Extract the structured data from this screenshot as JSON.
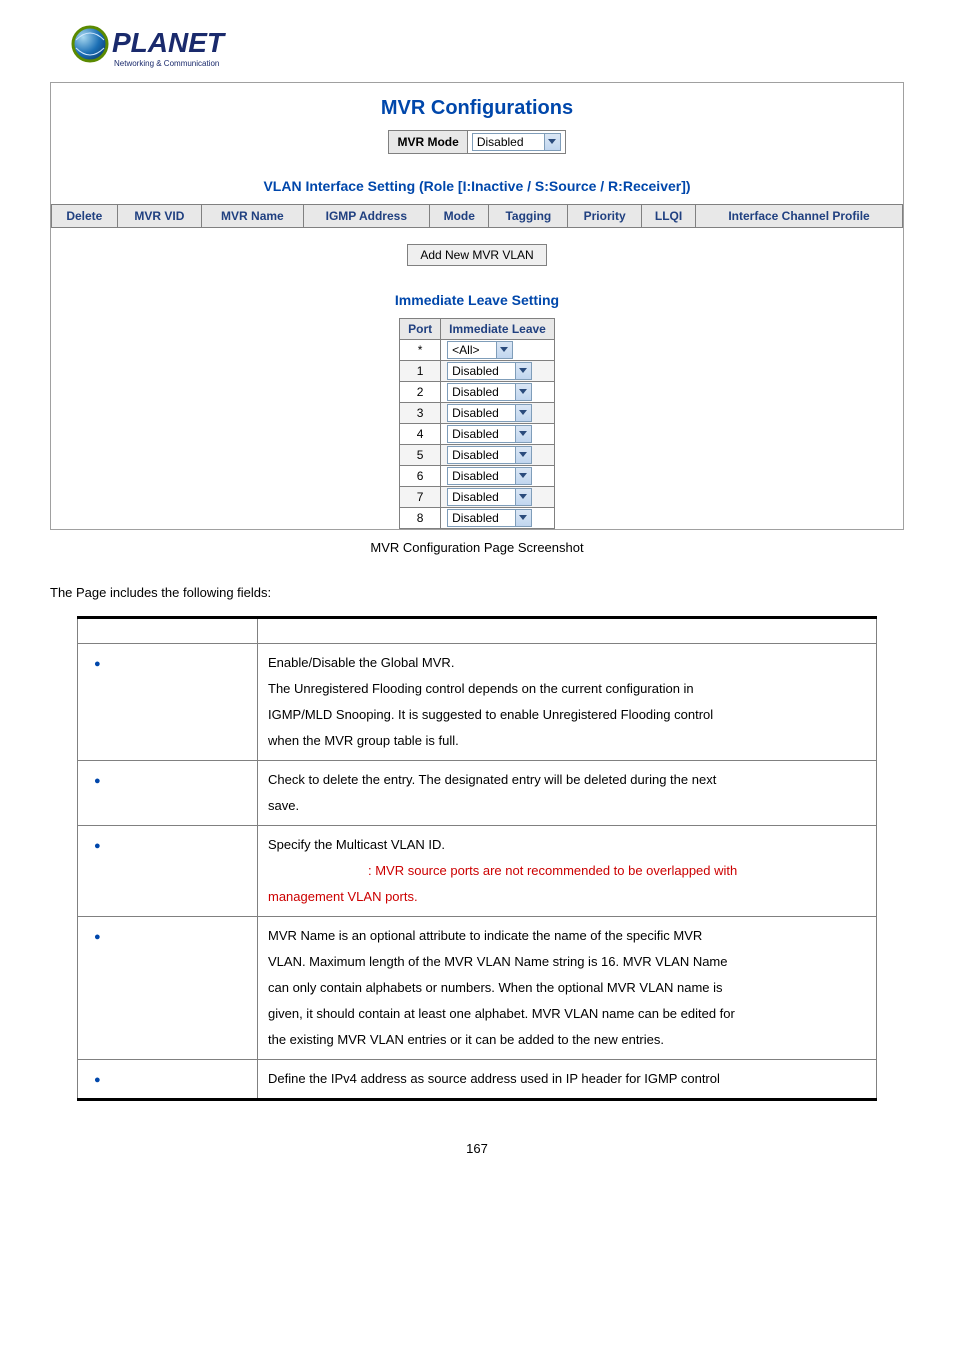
{
  "logo": {
    "brand": "PLANET",
    "tagline": "Networking & Communication"
  },
  "panel": {
    "title": "MVR Configurations",
    "mode_label": "MVR Mode",
    "mode_value": "Disabled",
    "vlan_section_title": "VLAN Interface Setting (Role [I:Inactive / S:Source / R:Receiver])",
    "vlan_headers": [
      "Delete",
      "MVR VID",
      "MVR Name",
      "IGMP Address",
      "Mode",
      "Tagging",
      "Priority",
      "LLQI",
      "Interface Channel Profile"
    ],
    "add_button": "Add New MVR VLAN",
    "leave_section_title": "Immediate Leave Setting",
    "leave_headers": [
      "Port",
      "Immediate Leave"
    ],
    "leave_rows": [
      {
        "port": "*",
        "value": "<All>"
      },
      {
        "port": "1",
        "value": "Disabled"
      },
      {
        "port": "2",
        "value": "Disabled"
      },
      {
        "port": "3",
        "value": "Disabled"
      },
      {
        "port": "4",
        "value": "Disabled"
      },
      {
        "port": "5",
        "value": "Disabled"
      },
      {
        "port": "6",
        "value": "Disabled"
      },
      {
        "port": "7",
        "value": "Disabled"
      },
      {
        "port": "8",
        "value": "Disabled"
      }
    ]
  },
  "caption": "MVR Configuration Page Screenshot",
  "intro": "The Page includes the following fields:",
  "fields": [
    {
      "desc_lines": [
        {
          "t": "Enable/Disable the Global MVR.",
          "red": false
        },
        {
          "t": "The Unregistered Flooding control depends on the current configuration in",
          "red": false
        },
        {
          "t": "IGMP/MLD Snooping. It is suggested to enable Unregistered Flooding control",
          "red": false
        },
        {
          "t": "when the MVR group table is full.",
          "red": false
        }
      ]
    },
    {
      "desc_lines": [
        {
          "t": "Check to delete the entry. The designated entry will be deleted during the next",
          "red": false
        },
        {
          "t": "save.",
          "red": false
        }
      ]
    },
    {
      "desc_lines": [
        {
          "t": "Specify the Multicast VLAN ID.",
          "red": false
        },
        {
          "t": ": MVR source ports are not recommended to be overlapped with",
          "red": true,
          "indent": true
        },
        {
          "t": "management VLAN ports.",
          "red": true
        }
      ]
    },
    {
      "desc_lines": [
        {
          "t": "MVR Name is an optional attribute to indicate the name of the specific MVR",
          "red": false
        },
        {
          "t": "VLAN. Maximum length of the MVR VLAN Name string is 16. MVR VLAN Name",
          "red": false
        },
        {
          "t": "can only contain alphabets or numbers. When the optional MVR VLAN name is",
          "red": false
        },
        {
          "t": "given, it should contain at least one alphabet. MVR VLAN name can be edited for",
          "red": false
        },
        {
          "t": "the existing MVR VLAN entries or it can be added to the new entries.",
          "red": false
        }
      ]
    },
    {
      "desc_lines": [
        {
          "t": "Define the IPv4 address as source address used in IP header for IGMP control",
          "red": false
        }
      ]
    }
  ],
  "page_number": "167",
  "colors": {
    "heading": "#0047ab",
    "border": "#808080",
    "header_bg": "#e8e8e8",
    "red": "#cc0000"
  }
}
